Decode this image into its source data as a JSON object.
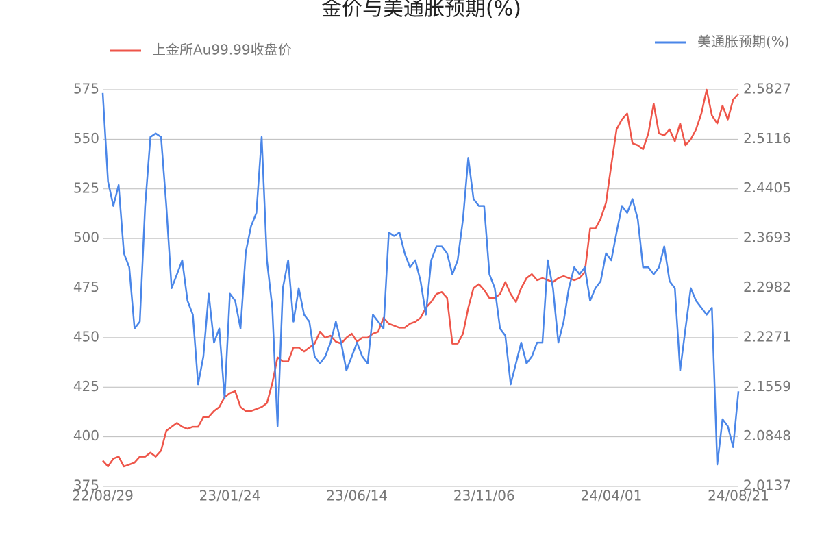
{
  "chart_data": {
    "type": "line",
    "title": "金价与美通胀预期(%)",
    "categories": [
      "22/08/29",
      null,
      null,
      null,
      null,
      null,
      null,
      null,
      null,
      null,
      null,
      null,
      null,
      null,
      null,
      null,
      null,
      null,
      null,
      null,
      null,
      null,
      null,
      null,
      "23/01/24",
      null,
      null,
      null,
      null,
      null,
      null,
      null,
      null,
      null,
      null,
      null,
      null,
      null,
      null,
      null,
      null,
      null,
      null,
      null,
      null,
      null,
      null,
      null,
      "23/06/14",
      null,
      null,
      null,
      null,
      null,
      null,
      null,
      null,
      null,
      null,
      null,
      null,
      null,
      null,
      null,
      null,
      null,
      null,
      null,
      null,
      null,
      null,
      null,
      "23/11/06",
      null,
      null,
      null,
      null,
      null,
      null,
      null,
      null,
      null,
      null,
      null,
      null,
      null,
      null,
      null,
      null,
      null,
      null,
      null,
      null,
      null,
      null,
      null,
      "24/04/01",
      null,
      null,
      null,
      null,
      null,
      null,
      null,
      null,
      null,
      null,
      null,
      null,
      null,
      null,
      null,
      null,
      null,
      null,
      null,
      null,
      null,
      null,
      null,
      "24/08/21"
    ],
    "series": [
      {
        "name": "上金所Au99.99收盘价",
        "color": "#ee5549",
        "values": [
          388,
          385,
          389,
          390,
          385,
          386,
          387,
          390,
          390,
          392,
          390,
          393,
          403,
          405,
          407,
          405,
          404,
          405,
          405,
          410,
          410,
          413,
          415,
          420,
          422,
          423,
          415,
          413,
          413,
          414,
          415,
          417,
          427,
          440,
          438,
          438,
          445,
          445,
          443,
          445,
          447,
          453,
          450,
          451,
          448,
          447,
          450,
          452,
          448,
          450,
          450,
          452,
          453,
          460,
          457,
          456,
          455,
          455,
          457,
          458,
          460,
          465,
          468,
          472,
          473,
          470,
          447,
          447,
          452,
          465,
          475,
          477,
          474,
          470,
          470,
          472,
          478,
          472,
          468,
          475,
          480,
          482,
          479,
          480,
          479,
          478,
          480,
          481,
          480,
          479,
          480,
          483,
          505,
          505,
          510,
          518,
          537,
          555,
          560,
          563,
          548,
          547,
          545,
          553,
          568,
          553,
          552,
          555,
          549,
          558,
          547,
          550,
          555,
          563,
          575,
          562,
          558,
          567,
          560,
          570,
          573
        ]
      },
      {
        "name": "美通胀预期(%)",
        "color": "#4a86e8",
        "axis": "y2",
        "values": [
          2.578,
          2.451,
          2.416,
          2.446,
          2.348,
          2.328,
          2.24,
          2.25,
          2.416,
          2.515,
          2.52,
          2.515,
          2.416,
          2.298,
          2.318,
          2.338,
          2.28,
          2.26,
          2.16,
          2.2,
          2.29,
          2.22,
          2.24,
          2.14,
          2.29,
          2.28,
          2.24,
          2.35,
          2.387,
          2.406,
          2.515,
          2.338,
          2.27,
          2.1,
          2.298,
          2.338,
          2.25,
          2.298,
          2.26,
          2.25,
          2.2,
          2.19,
          2.2,
          2.22,
          2.25,
          2.22,
          2.18,
          2.2,
          2.22,
          2.2,
          2.19,
          2.26,
          2.25,
          2.24,
          2.378,
          2.373,
          2.378,
          2.348,
          2.328,
          2.338,
          2.308,
          2.26,
          2.338,
          2.358,
          2.358,
          2.348,
          2.318,
          2.338,
          2.397,
          2.485,
          2.426,
          2.416,
          2.416,
          2.318,
          2.298,
          2.24,
          2.23,
          2.16,
          2.19,
          2.22,
          2.19,
          2.2,
          2.22,
          2.22,
          2.338,
          2.298,
          2.22,
          2.25,
          2.298,
          2.328,
          2.318,
          2.328,
          2.28,
          2.298,
          2.308,
          2.348,
          2.338,
          2.378,
          2.416,
          2.406,
          2.426,
          2.397,
          2.328,
          2.328,
          2.318,
          2.328,
          2.358,
          2.308,
          2.298,
          2.18,
          2.24,
          2.298,
          2.28,
          2.27,
          2.26,
          2.27,
          2.045,
          2.11,
          2.1,
          2.07,
          2.15
        ]
      }
    ],
    "ylim": [
      375,
      575
    ],
    "yticks": [
      375,
      400,
      425,
      450,
      475,
      500,
      525,
      550,
      575
    ],
    "y2lim": [
      2.0137,
      2.5827
    ],
    "y2ticks": [
      2.0137,
      2.0848,
      2.1559,
      2.2271,
      2.2982,
      2.3693,
      2.4405,
      2.5116,
      2.5827
    ],
    "grid": true
  }
}
